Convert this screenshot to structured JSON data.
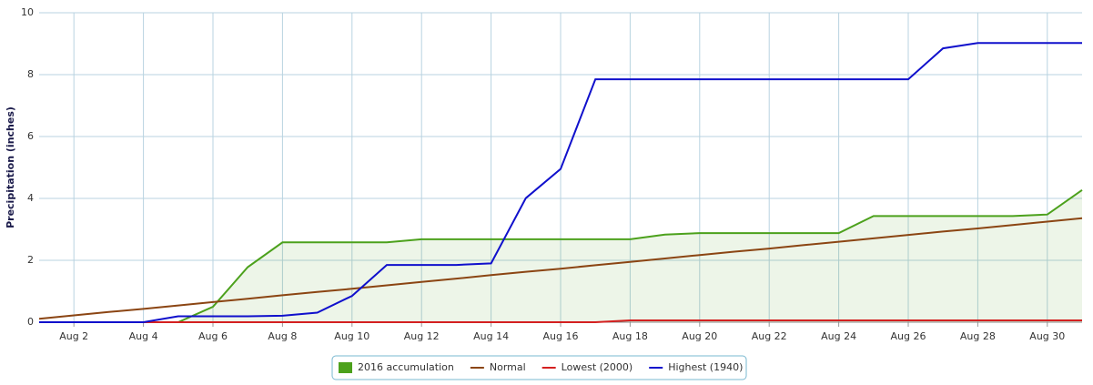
{
  "chart_data": {
    "type": "line",
    "y_label": "Precipitation (inches)",
    "categories": [
      null,
      "Aug 2",
      null,
      "Aug 4",
      null,
      "Aug 6",
      null,
      "Aug 8",
      null,
      "Aug 10",
      null,
      "Aug 12",
      null,
      "Aug 14",
      null,
      "Aug 16",
      null,
      "Aug 18",
      null,
      "Aug 20",
      null,
      "Aug 22",
      null,
      "Aug 24",
      null,
      "Aug 26",
      null,
      "Aug 28",
      null,
      "Aug 30",
      null
    ],
    "series": [
      {
        "name": "2016 accumulation",
        "color": "#4ca11c",
        "area": true,
        "values": [
          0,
          0,
          0,
          0,
          0,
          0.5,
          1.78,
          2.58,
          2.58,
          2.58,
          2.58,
          2.68,
          2.68,
          2.68,
          2.68,
          2.68,
          2.68,
          2.68,
          2.83,
          2.88,
          2.88,
          2.88,
          2.88,
          2.88,
          3.43,
          3.43,
          3.43,
          3.43,
          3.43,
          3.48,
          4.27
        ]
      },
      {
        "name": "Normal",
        "color": "#8b4513",
        "values": [
          0.11,
          0.22,
          0.33,
          0.43,
          0.54,
          0.65,
          0.76,
          0.87,
          0.98,
          1.08,
          1.19,
          1.3,
          1.41,
          1.52,
          1.63,
          1.73,
          1.84,
          1.95,
          2.06,
          2.17,
          2.28,
          2.38,
          2.49,
          2.6,
          2.71,
          2.82,
          2.93,
          3.03,
          3.14,
          3.25,
          3.36
        ]
      },
      {
        "name": "Lowest (2000)",
        "color": "#d42020",
        "values": [
          0,
          0,
          0,
          0,
          0,
          0,
          0,
          0,
          0,
          0,
          0,
          0,
          0,
          0,
          0,
          0,
          0,
          0.06,
          0.06,
          0.06,
          0.06,
          0.06,
          0.06,
          0.06,
          0.06,
          0.06,
          0.06,
          0.06,
          0.06,
          0.06,
          0.06
        ]
      },
      {
        "name": "Highest (1940)",
        "color": "#1010cc",
        "values": [
          0,
          0,
          0,
          0,
          0.19,
          0.19,
          0.19,
          0.21,
          0.31,
          0.85,
          1.85,
          1.85,
          1.85,
          1.9,
          4.01,
          4.95,
          7.85,
          7.85,
          7.85,
          7.85,
          7.85,
          7.85,
          7.85,
          7.85,
          7.85,
          7.85,
          8.85,
          9.02,
          9.02,
          9.02,
          9.02
        ]
      }
    ],
    "ylim": [
      0,
      10
    ],
    "yticks": [
      0,
      2,
      4,
      6,
      8,
      10
    ],
    "grid": true
  }
}
